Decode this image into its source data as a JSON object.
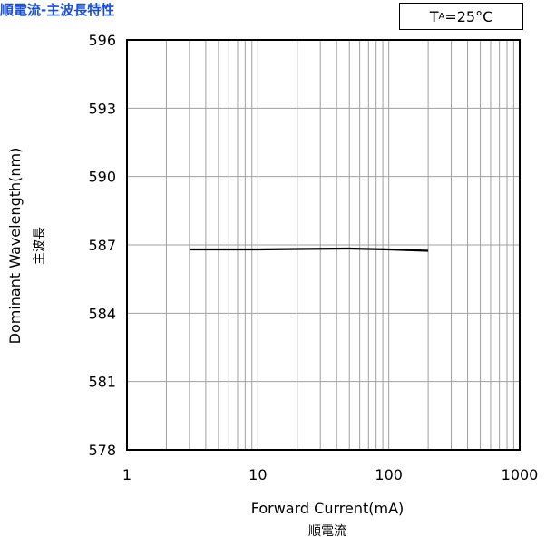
{
  "chart_data": {
    "type": "line",
    "title": "順電流-主波長特性",
    "condition": {
      "main": "T",
      "sub": "A",
      "rest": "=25°C"
    },
    "xlabel": "Forward Current(mA)",
    "xlabel_sub": "順電流",
    "ylabel": "Dominant Wavelength(nm)",
    "ylabel_sub": "主波長",
    "x_scale": "log",
    "xlim": [
      1,
      1000
    ],
    "ylim": [
      578,
      596
    ],
    "x_ticks": [
      "1",
      "10",
      "100",
      "1000"
    ],
    "y_ticks": [
      "578",
      "581",
      "584",
      "587",
      "590",
      "593",
      "596"
    ],
    "grid": true,
    "series": [
      {
        "x": [
          3,
          5,
          10,
          20,
          50,
          100,
          200
        ],
        "y": [
          586.8,
          586.8,
          586.8,
          586.82,
          586.84,
          586.8,
          586.74
        ]
      }
    ]
  }
}
